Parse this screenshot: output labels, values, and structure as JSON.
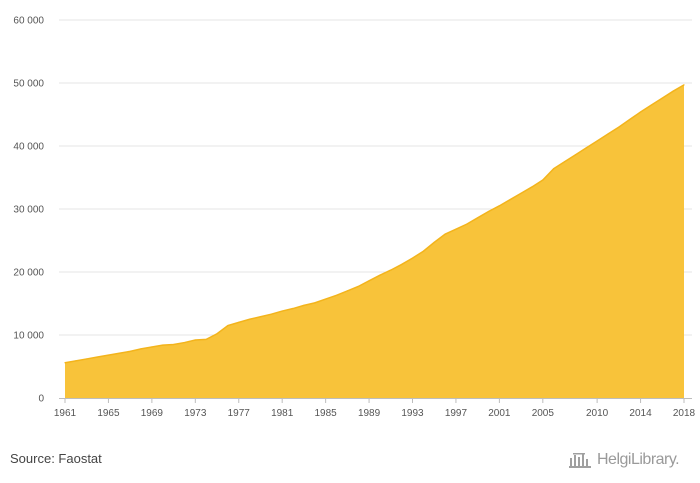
{
  "chart_data": {
    "type": "area",
    "title": "",
    "xlabel": "",
    "ylabel": "",
    "x": [
      1961,
      1962,
      1963,
      1964,
      1965,
      1966,
      1967,
      1968,
      1969,
      1970,
      1971,
      1972,
      1973,
      1974,
      1975,
      1976,
      1977,
      1978,
      1979,
      1980,
      1981,
      1982,
      1983,
      1984,
      1985,
      1986,
      1987,
      1988,
      1989,
      1990,
      1991,
      1992,
      1993,
      1994,
      1995,
      1996,
      1997,
      1998,
      1999,
      2000,
      2001,
      2002,
      2003,
      2004,
      2005,
      2006,
      2007,
      2008,
      2009,
      2010,
      2011,
      2012,
      2013,
      2014,
      2015,
      2016,
      2017,
      2018
    ],
    "values": [
      5600,
      5900,
      6200,
      6500,
      6800,
      7100,
      7400,
      7800,
      8100,
      8400,
      8500,
      8800,
      9200,
      9300,
      10200,
      11500,
      12000,
      12500,
      12900,
      13300,
      13800,
      14200,
      14700,
      15100,
      15700,
      16300,
      17000,
      17700,
      18600,
      19500,
      20300,
      21200,
      22200,
      23300,
      24700,
      26000,
      26800,
      27600,
      28600,
      29600,
      30500,
      31500,
      32500,
      33500,
      34600,
      36400,
      37500,
      38600,
      39700,
      40800,
      41900,
      43000,
      44200,
      45400,
      46500,
      47600,
      48700,
      49700
    ],
    "ylim": [
      0,
      60000
    ],
    "y_ticks": [
      0,
      10000,
      20000,
      30000,
      40000,
      50000,
      60000
    ],
    "y_tick_labels": [
      "0",
      "10 000",
      "20 000",
      "30 000",
      "40 000",
      "50 000",
      "60 000"
    ],
    "x_tick_labels": [
      "1961",
      "1965",
      "1969",
      "1973",
      "1977",
      "1981",
      "1985",
      "1989",
      "1993",
      "1997",
      "2001",
      "2005",
      "2010",
      "2014",
      "2018"
    ],
    "grid": true,
    "legend": "none",
    "colors": {
      "fill": "#f8c33a",
      "stroke": "#f3b41c",
      "grid": "#e6e6e6",
      "axis": "#bdbdbd"
    }
  },
  "footer": {
    "source": "Source: Faostat",
    "logo_text": "HelgiLibrary.",
    "logo_icon": "building-logo-icon"
  }
}
